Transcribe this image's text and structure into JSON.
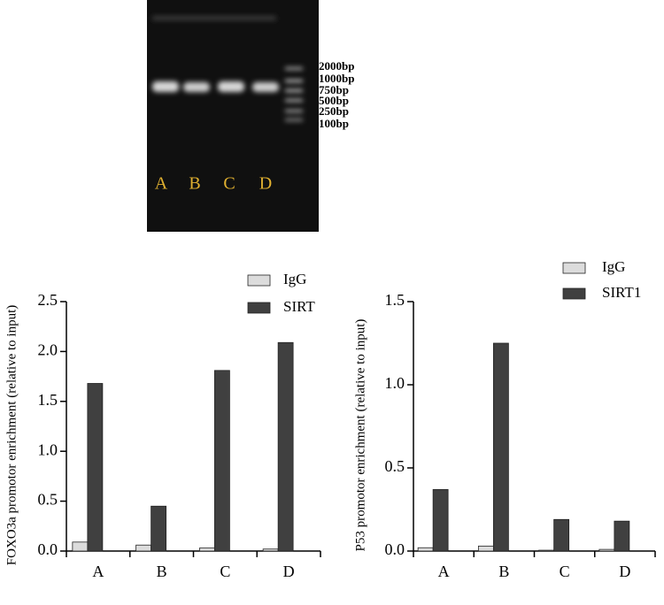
{
  "gel": {
    "lane_labels": [
      "A",
      "B",
      "C",
      "D"
    ],
    "ladder_labels": [
      "2000bp",
      "1000bp",
      "750bp",
      "500bp",
      "250bp",
      "100bp"
    ]
  },
  "chart_data": [
    {
      "type": "bar",
      "y_label": "FOXO3a promotor enrichment  (relative to input)",
      "categories": [
        "A",
        "B",
        "C",
        "D"
      ],
      "series": [
        {
          "name": "IgG",
          "color": "#dcdcdc",
          "values": [
            0.09,
            0.06,
            0.03,
            0.02
          ]
        },
        {
          "name": "SIRT",
          "color": "#404040",
          "values": [
            1.68,
            0.45,
            1.81,
            2.09
          ]
        }
      ],
      "ylim": [
        0,
        2.5
      ],
      "yticks": [
        {
          "value": 0,
          "label": "0.0"
        },
        0.5,
        {
          "value": 1,
          "label": "1.0"
        },
        1.5,
        {
          "value": 2,
          "label": "2.0"
        },
        2.5
      ]
    },
    {
      "type": "bar",
      "y_label": "P53  promotor enrichment (relative to input)",
      "categories": [
        "A",
        "B",
        "C",
        "D"
      ],
      "series": [
        {
          "name": "IgG",
          "color": "#dcdcdc",
          "values": [
            0.02,
            0.03,
            0.005,
            0.01
          ]
        },
        {
          "name": "SIRT1",
          "color": "#404040",
          "values": [
            0.37,
            1.25,
            0.19,
            0.18
          ]
        }
      ],
      "ylim": [
        0,
        1.5
      ],
      "yticks": [
        {
          "value": 0,
          "label": "0.0"
        },
        0.5,
        {
          "value": 1,
          "label": "1.0"
        },
        1.5
      ]
    }
  ]
}
